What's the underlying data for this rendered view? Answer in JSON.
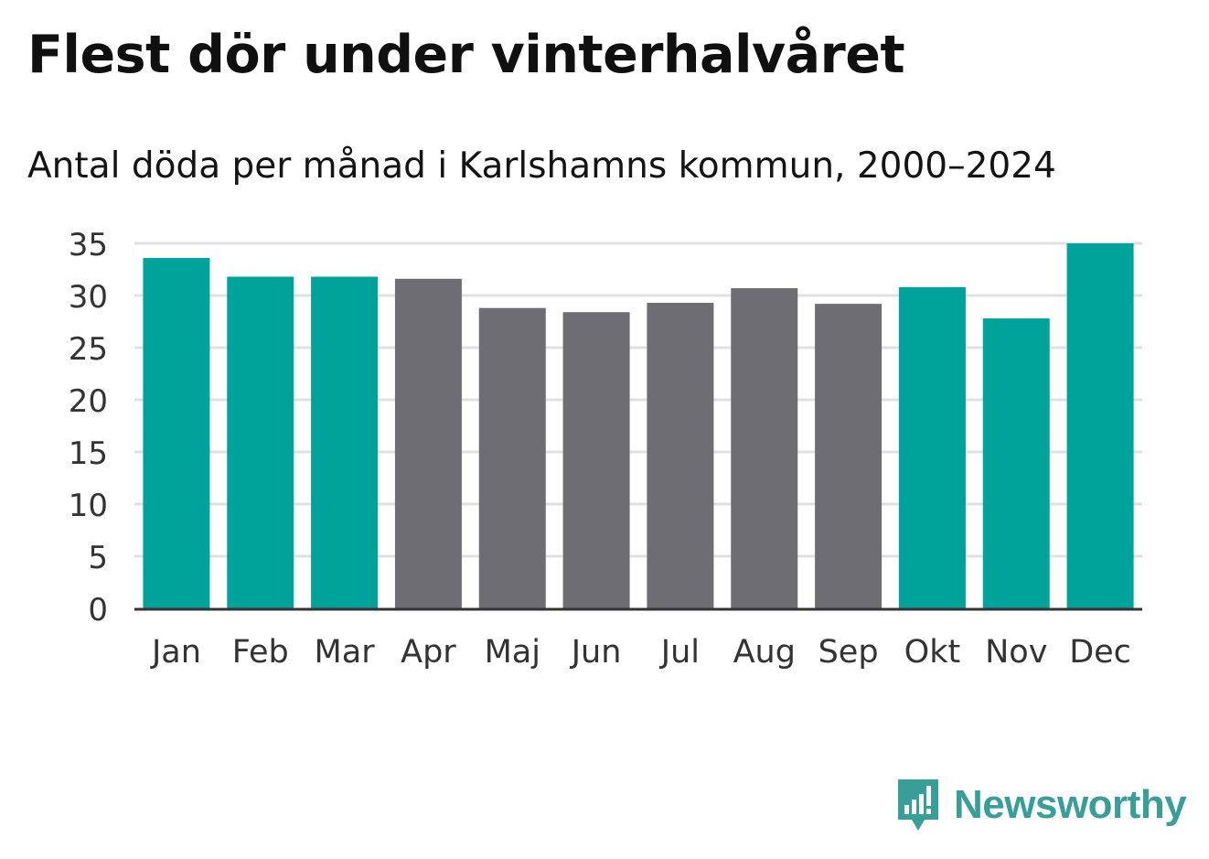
{
  "header": {
    "title": "Flest dör under vinterhalvåret",
    "subtitle": "Antal döda per månad i Karlshamns kommun, 2000–2024"
  },
  "chart_data": {
    "type": "bar",
    "title": "Flest dör under vinterhalvåret",
    "subtitle": "Antal döda per månad i Karlshamns kommun, 2000–2024",
    "xlabel": "",
    "ylabel": "",
    "categories": [
      "Jan",
      "Feb",
      "Mar",
      "Apr",
      "Maj",
      "Jun",
      "Jul",
      "Aug",
      "Sep",
      "Okt",
      "Nov",
      "Dec"
    ],
    "values": [
      33.6,
      31.8,
      31.8,
      31.6,
      28.8,
      28.4,
      29.3,
      30.7,
      29.2,
      30.8,
      27.8,
      35.0
    ],
    "highlight": [
      true,
      true,
      true,
      false,
      false,
      false,
      false,
      false,
      false,
      true,
      true,
      true
    ],
    "ylim": [
      0,
      35
    ],
    "yticks": [
      "0",
      "5",
      "10",
      "15",
      "20",
      "25",
      "30",
      "35"
    ],
    "grid": true,
    "colors": {
      "highlight": "#00a39a",
      "base": "#6e6d73",
      "grid": "#e0e0e0",
      "axis": "#333333",
      "tick_text": "#333333"
    }
  },
  "brand": {
    "name": "Newsworthy",
    "icon": "newsworthy-logo-icon",
    "color": "#3a9e98"
  }
}
